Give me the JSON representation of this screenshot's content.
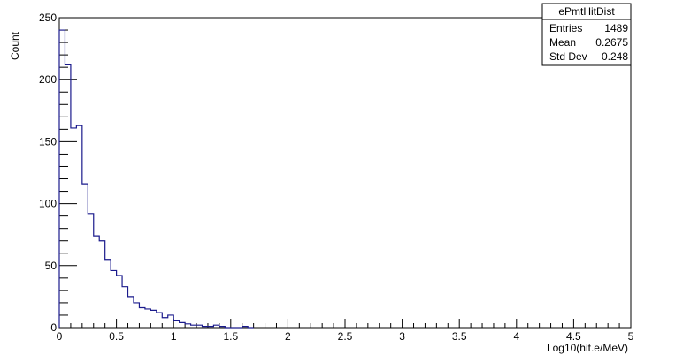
{
  "chart_data": {
    "type": "histogram",
    "title": "",
    "xlabel": "Log10(hit.e/MeV)",
    "ylabel": "Count",
    "xlim": [
      0,
      5
    ],
    "ylim": [
      0,
      250
    ],
    "xticks": [
      "0",
      "0.5",
      "1",
      "1.5",
      "2",
      "2.5",
      "3",
      "3.5",
      "4",
      "4.5",
      "5"
    ],
    "yticks": [
      "0",
      "50",
      "100",
      "150",
      "200",
      "250"
    ],
    "bin_width": 0.05,
    "bin_start": 0,
    "values": [
      240,
      212,
      161,
      163,
      116,
      92,
      74,
      70,
      55,
      46,
      42,
      33,
      25,
      20,
      16,
      15,
      14,
      12,
      8,
      10,
      6,
      4,
      3,
      2,
      2,
      1,
      1,
      2,
      1,
      0,
      0,
      0,
      1,
      0
    ],
    "line_color": "#1a1a8c",
    "stats": {
      "name": "ePmtHitDist",
      "rows": [
        {
          "label": "Entries",
          "value": "1489"
        },
        {
          "label": "Mean",
          "value": "0.2675"
        },
        {
          "label": "Std Dev",
          "value": "0.248"
        }
      ]
    }
  }
}
